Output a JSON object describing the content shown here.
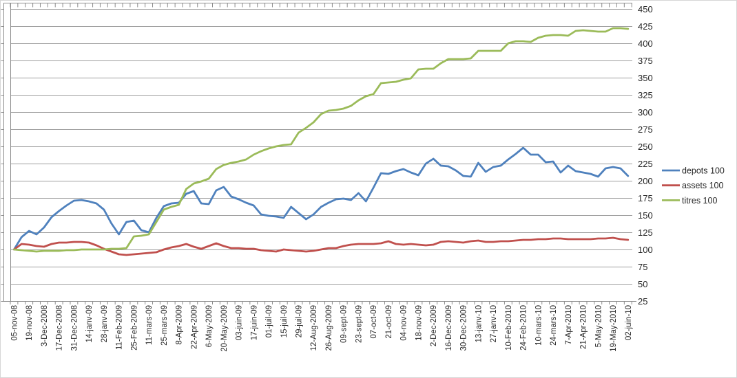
{
  "chart_data": {
    "type": "line",
    "title": "",
    "xlabel": "",
    "ylabel": "",
    "ylim": [
      25,
      450
    ],
    "ytick_step": 25,
    "grid": true,
    "legend_position": "right",
    "colors": {
      "grid": "#9c9c9c",
      "axis": "#8c8c8c",
      "tick_text": "#262626",
      "background": "#ffffff"
    },
    "y_tick_labels": [
      "450",
      "425",
      "400",
      "375",
      "350",
      "325",
      "300",
      "275",
      "250",
      "225",
      "200",
      "175",
      "150",
      "125",
      "100",
      "75",
      "50",
      "25"
    ],
    "x_labels": [
      "05-nov-08",
      "19-nov-08",
      "3-Dec-2008",
      "17-Dec-2008",
      "31-Dec-2008",
      "14-janv-09",
      "28-janv-09",
      "11-Feb-2009",
      "25-Feb-2009",
      "11-mars-09",
      "25-mars-09",
      "8-Apr-2009",
      "22-Apr-2009",
      "6-May-2009",
      "20-May-2009",
      "03-juin-09",
      "17-juin-09",
      "01-juil-09",
      "15-juil-09",
      "29-juil-09",
      "12-Aug-2009",
      "26-Aug-2009",
      "09-sept-09",
      "23-sept-09",
      "07-oct-09",
      "21-oct-09",
      "04-nov-09",
      "18-nov-09",
      "2-Dec-2009",
      "16-Dec-2009",
      "30-Dec-2009",
      "13-janv-10",
      "27-janv-10",
      "10-Feb-2010",
      "24-Feb-2010",
      "10-mars-10",
      "24-mars-10",
      "7-Apr-2010",
      "21-Apr-2010",
      "5-May-2010",
      "19-May-2010",
      "02-juin-10"
    ],
    "x_label_every_n_points": 2,
    "series": [
      {
        "name": "depots 100",
        "color": "#4F81BD",
        "values": [
          100,
          118,
          127,
          122,
          132,
          147,
          156,
          164,
          171,
          172,
          170,
          167,
          158,
          138,
          122,
          140,
          142,
          128,
          125,
          146,
          163,
          167,
          168,
          181,
          185,
          167,
          166,
          186,
          191,
          177,
          173,
          168,
          164,
          151,
          149,
          148,
          146,
          162,
          153,
          144,
          151,
          162,
          168,
          173,
          174,
          172,
          182,
          170,
          190,
          211,
          210,
          214,
          217,
          212,
          208,
          225,
          232,
          222,
          221,
          215,
          207,
          206,
          226,
          213,
          220,
          222,
          231,
          239,
          248,
          238,
          238,
          227,
          228,
          212,
          222,
          214,
          212,
          210,
          206,
          218,
          220,
          218,
          207
        ]
      },
      {
        "name": "assets 100",
        "color": "#C0504D",
        "values": [
          100,
          108,
          107,
          105,
          104,
          108,
          110,
          110,
          111,
          111,
          110,
          106,
          101,
          97,
          93,
          92,
          93,
          94,
          95,
          96,
          100,
          103,
          105,
          108,
          104,
          101,
          105,
          109,
          105,
          102,
          102,
          101,
          101,
          99,
          98,
          97,
          100,
          99,
          98,
          97,
          98,
          100,
          102,
          102,
          105,
          107,
          108,
          108,
          108,
          109,
          112,
          108,
          107,
          108,
          107,
          106,
          107,
          111,
          112,
          111,
          110,
          112,
          113,
          111,
          111,
          112,
          112,
          113,
          114,
          114,
          115,
          115,
          116,
          116,
          115,
          115,
          115,
          115,
          116,
          116,
          117,
          115,
          114
        ]
      },
      {
        "name": "titres 100",
        "color": "#9BBB59",
        "values": [
          100,
          99,
          98,
          97,
          98,
          98,
          98,
          99,
          99,
          100,
          100,
          100,
          100,
          101,
          101,
          102,
          119,
          120,
          122,
          140,
          158,
          162,
          165,
          188,
          196,
          199,
          203,
          217,
          223,
          226,
          228,
          231,
          238,
          243,
          247,
          250,
          252,
          253,
          270,
          277,
          285,
          297,
          302,
          303,
          305,
          309,
          317,
          323,
          326,
          342,
          343,
          344,
          347,
          349,
          362,
          363,
          363,
          371,
          377,
          377,
          377,
          378,
          389,
          389,
          389,
          389,
          400,
          403,
          403,
          402,
          408,
          411,
          412,
          412,
          411,
          418,
          419,
          418,
          417,
          417,
          422,
          422,
          421
        ]
      }
    ]
  }
}
